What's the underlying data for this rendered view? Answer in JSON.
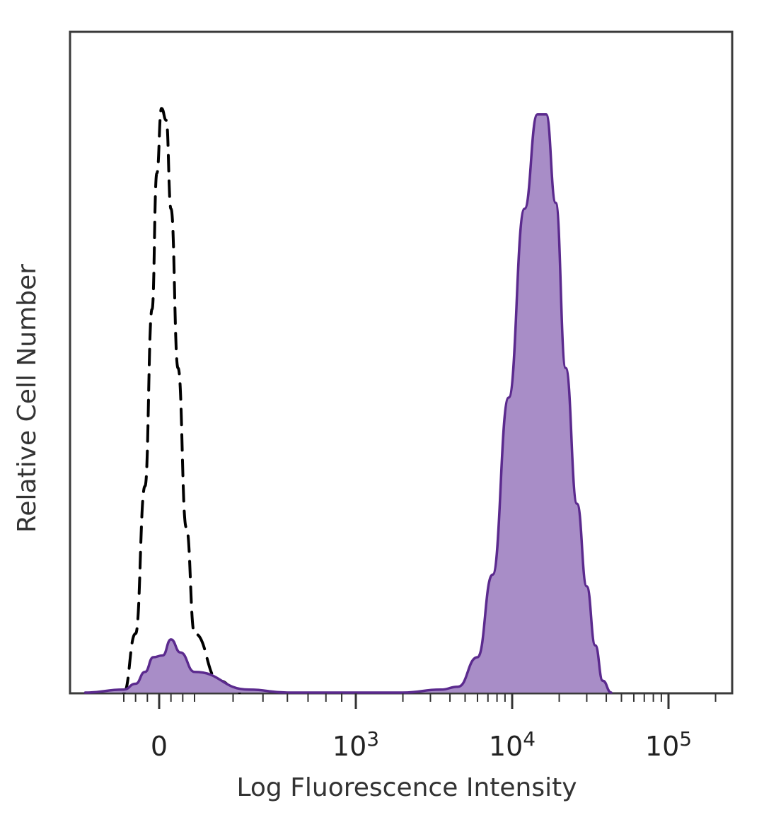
{
  "chart_data": {
    "type": "area",
    "xlabel": "Log Fluorescence Intensity",
    "ylabel": "Relative Cell Number",
    "x_scale": "biexponential",
    "x_ticks": [
      {
        "value": 0,
        "label": "0",
        "sup": ""
      },
      {
        "value": 1000,
        "label": "10",
        "sup": "3"
      },
      {
        "value": 10000,
        "label": "10",
        "sup": "4"
      },
      {
        "value": 100000,
        "label": "10",
        "sup": "5"
      }
    ],
    "y_ticks": [],
    "grid": false,
    "legend": "none",
    "series": [
      {
        "style": "dashed",
        "color": "#000000",
        "fill": "none",
        "points": [
          [
            -300,
            0
          ],
          [
            -200,
            0.1
          ],
          [
            -120,
            0.35
          ],
          [
            -60,
            0.65
          ],
          [
            -20,
            0.88
          ],
          [
            20,
            0.99
          ],
          [
            60,
            0.97
          ],
          [
            100,
            0.82
          ],
          [
            160,
            0.55
          ],
          [
            230,
            0.28
          ],
          [
            300,
            0.1
          ],
          [
            360,
            0.02
          ],
          [
            420,
            0.0
          ]
        ]
      },
      {
        "style": "solid",
        "color": "#5b2a8e",
        "fill": "#a88dc7",
        "points": [
          [
            -400,
            0
          ],
          [
            -300,
            0.005
          ],
          [
            -200,
            0.015
          ],
          [
            -120,
            0.035
          ],
          [
            -50,
            0.06
          ],
          [
            30,
            0.063
          ],
          [
            100,
            0.09
          ],
          [
            180,
            0.068
          ],
          [
            300,
            0.035
          ],
          [
            450,
            0.005
          ],
          [
            600,
            0.0
          ],
          [
            2000,
            0.0
          ],
          [
            3500,
            0.005
          ],
          [
            4500,
            0.01
          ],
          [
            6000,
            0.06
          ],
          [
            7500,
            0.2
          ],
          [
            9500,
            0.5
          ],
          [
            12000,
            0.82
          ],
          [
            14500,
            0.98
          ],
          [
            16500,
            0.98
          ],
          [
            19000,
            0.83
          ],
          [
            22000,
            0.55
          ],
          [
            26000,
            0.32
          ],
          [
            30000,
            0.18
          ],
          [
            34000,
            0.08
          ],
          [
            38000,
            0.02
          ],
          [
            43000,
            0.0
          ]
        ]
      }
    ]
  }
}
